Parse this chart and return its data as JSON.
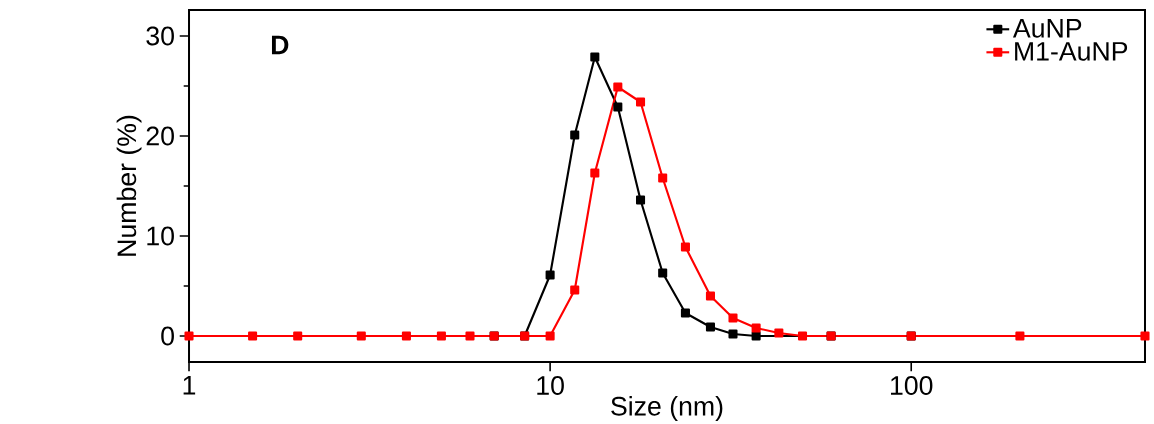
{
  "chart_data": {
    "type": "line",
    "xlabel": "Size (nm)",
    "ylabel": "Number (%)",
    "annotations": [
      "D"
    ],
    "log": "x",
    "xlim": [
      1,
      444
    ],
    "xticks": [
      1,
      10,
      100
    ],
    "ylim": [
      -2.6,
      32.6
    ],
    "yticks": [
      0,
      10,
      20,
      30
    ],
    "grid": false,
    "legend": "top right",
    "marker": "square",
    "line_style": "solid",
    "series": [
      {
        "name": "AuNP",
        "color": "#000000",
        "x": [
          7,
          8.5,
          10.0,
          11.7,
          13.3,
          15.4,
          17.8,
          20.5,
          23.7,
          27.8,
          32.1,
          37.2,
          60,
          100
        ],
        "values": [
          0,
          0,
          6.1,
          20.1,
          27.9,
          22.9,
          13.6,
          6.3,
          2.3,
          0.9,
          0.2,
          0,
          0,
          0
        ]
      },
      {
        "name": "M1-AuNP",
        "color": "#ff0000",
        "x": [
          1,
          1.5,
          2,
          3,
          4,
          5,
          6,
          7,
          8.5,
          10.0,
          11.7,
          13.3,
          15.4,
          17.8,
          20.5,
          23.7,
          27.8,
          32.1,
          37.2,
          43.0,
          50,
          60,
          100,
          200,
          444
        ],
        "values": [
          0,
          0,
          0,
          0,
          0,
          0,
          0,
          0,
          0,
          0,
          4.6,
          16.3,
          24.9,
          23.4,
          15.8,
          8.9,
          4.0,
          1.8,
          0.8,
          0.3,
          0,
          0,
          0,
          0,
          0
        ]
      }
    ]
  }
}
